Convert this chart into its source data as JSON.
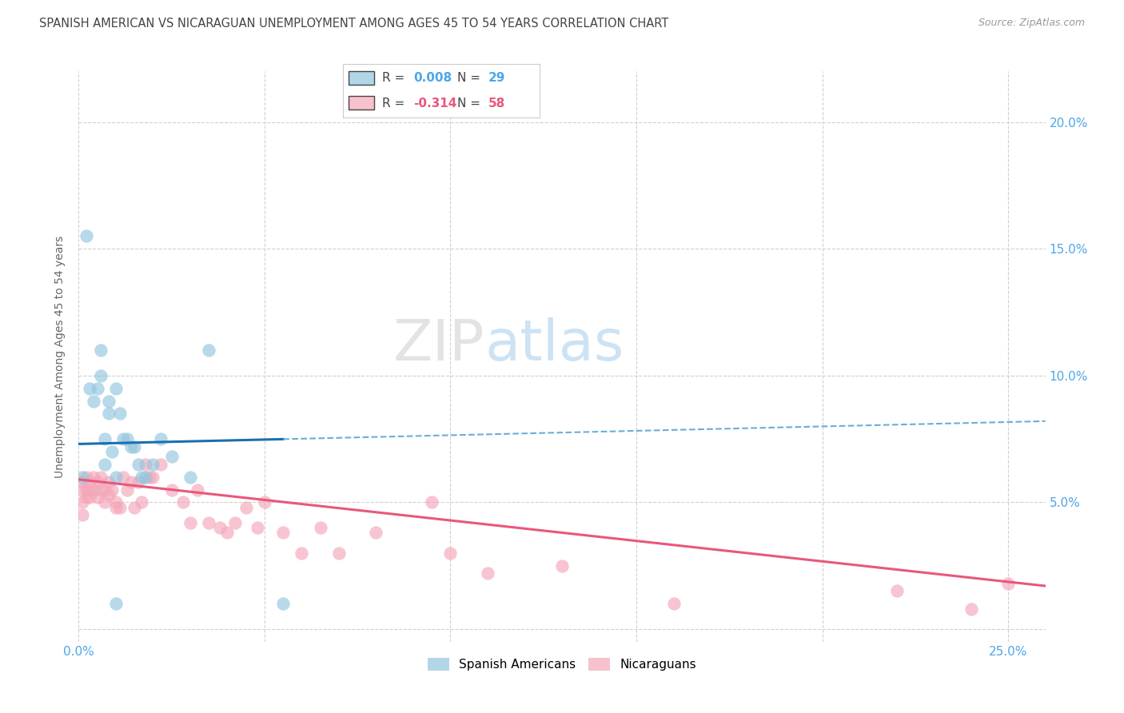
{
  "title": "SPANISH AMERICAN VS NICARAGUAN UNEMPLOYMENT AMONG AGES 45 TO 54 YEARS CORRELATION CHART",
  "source": "Source: ZipAtlas.com",
  "ylabel": "Unemployment Among Ages 45 to 54 years",
  "xlim": [
    0.0,
    0.26
  ],
  "ylim": [
    -0.005,
    0.22
  ],
  "yticks": [
    0.0,
    0.05,
    0.1,
    0.15,
    0.2
  ],
  "ytick_labels": [
    "",
    "5.0%",
    "10.0%",
    "15.0%",
    "20.0%"
  ],
  "xtick_positions": [
    0.0,
    0.05,
    0.1,
    0.15,
    0.2,
    0.25
  ],
  "color_blue": "#92c5de",
  "color_pink": "#f4a7b9",
  "color_line_blue": "#1a6faf",
  "color_line_blue_dash": "#6aafd4",
  "color_line_pink": "#e8587a",
  "color_axis_text": "#4da6e8",
  "color_title": "#444444",
  "color_grid": "#d0d0d0",
  "watermark_zip": "ZIP",
  "watermark_atlas": "atlas",
  "spanish_x": [
    0.001,
    0.002,
    0.003,
    0.004,
    0.005,
    0.006,
    0.006,
    0.007,
    0.007,
    0.008,
    0.008,
    0.009,
    0.01,
    0.01,
    0.011,
    0.012,
    0.013,
    0.014,
    0.015,
    0.016,
    0.017,
    0.018,
    0.02,
    0.022,
    0.025,
    0.03,
    0.055,
    0.01,
    0.035
  ],
  "spanish_y": [
    0.06,
    0.155,
    0.095,
    0.09,
    0.095,
    0.11,
    0.1,
    0.075,
    0.065,
    0.09,
    0.085,
    0.07,
    0.095,
    0.06,
    0.085,
    0.075,
    0.075,
    0.072,
    0.072,
    0.065,
    0.06,
    0.06,
    0.065,
    0.075,
    0.068,
    0.06,
    0.01,
    0.01,
    0.11
  ],
  "nicaraguan_x": [
    0.001,
    0.001,
    0.001,
    0.001,
    0.002,
    0.002,
    0.002,
    0.003,
    0.003,
    0.003,
    0.004,
    0.004,
    0.005,
    0.005,
    0.006,
    0.006,
    0.007,
    0.007,
    0.008,
    0.008,
    0.009,
    0.01,
    0.01,
    0.011,
    0.012,
    0.013,
    0.014,
    0.015,
    0.016,
    0.017,
    0.018,
    0.019,
    0.02,
    0.022,
    0.025,
    0.028,
    0.03,
    0.032,
    0.035,
    0.038,
    0.04,
    0.042,
    0.045,
    0.048,
    0.05,
    0.055,
    0.06,
    0.065,
    0.07,
    0.08,
    0.095,
    0.1,
    0.11,
    0.13,
    0.16,
    0.22,
    0.24,
    0.25
  ],
  "nicaraguan_y": [
    0.058,
    0.055,
    0.05,
    0.045,
    0.06,
    0.055,
    0.052,
    0.058,
    0.055,
    0.052,
    0.06,
    0.055,
    0.058,
    0.052,
    0.06,
    0.055,
    0.055,
    0.05,
    0.058,
    0.053,
    0.055,
    0.05,
    0.048,
    0.048,
    0.06,
    0.055,
    0.058,
    0.048,
    0.058,
    0.05,
    0.065,
    0.06,
    0.06,
    0.065,
    0.055,
    0.05,
    0.042,
    0.055,
    0.042,
    0.04,
    0.038,
    0.042,
    0.048,
    0.04,
    0.05,
    0.038,
    0.03,
    0.04,
    0.03,
    0.038,
    0.05,
    0.03,
    0.022,
    0.025,
    0.01,
    0.015,
    0.008,
    0.018
  ],
  "blue_line_solid_end": 0.055,
  "blue_line_y_start": 0.073,
  "blue_line_y_end": 0.082,
  "pink_line_y_start": 0.059,
  "pink_line_y_end": 0.017
}
